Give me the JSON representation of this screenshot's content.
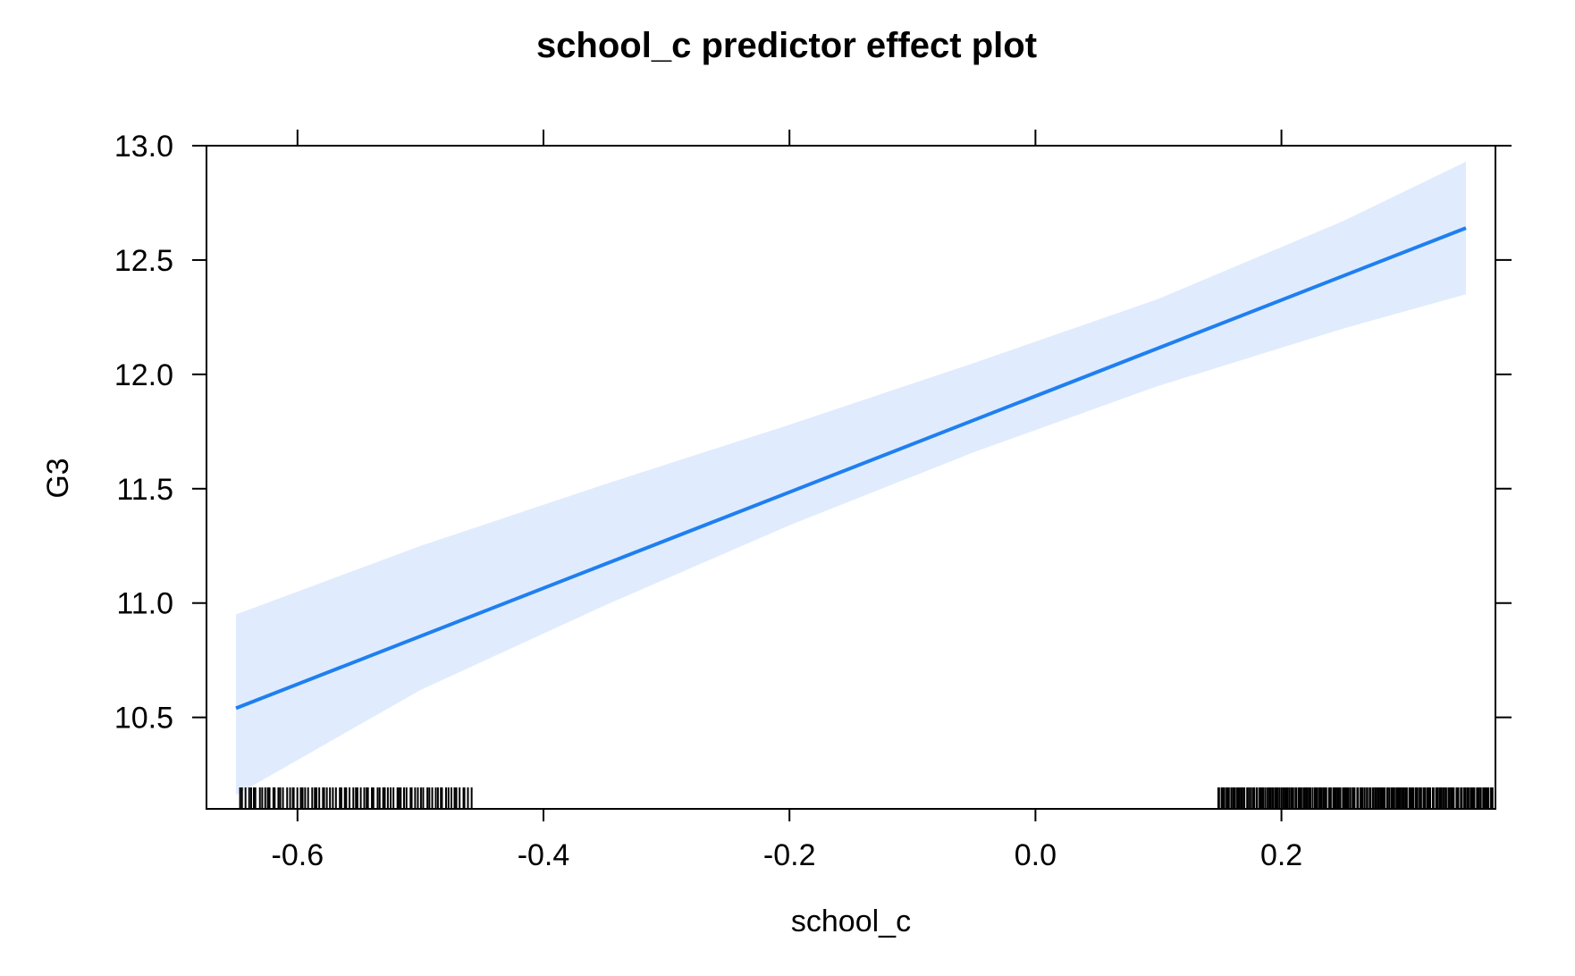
{
  "chart_data": {
    "type": "line",
    "title": "school_c predictor effect plot",
    "xlabel": "school_c",
    "ylabel": "G3",
    "xlim": [
      -0.674,
      0.374
    ],
    "ylim": [
      10.1,
      13.0
    ],
    "x_ticks": [
      -0.6,
      -0.4,
      -0.2,
      0.0,
      0.2
    ],
    "x_tick_labels": [
      "-0.6",
      "-0.4",
      "-0.2",
      "0.0",
      "0.2"
    ],
    "y_ticks": [
      10.5,
      11.0,
      11.5,
      12.0,
      12.5,
      13.0
    ],
    "y_tick_labels": [
      "10.5",
      "11.0",
      "11.5",
      "12.0",
      "12.5",
      "13.0"
    ],
    "grid": false,
    "legend": "none",
    "series": [
      {
        "x": [
          -0.65,
          0.35
        ],
        "y": [
          10.54,
          12.64
        ],
        "color": "#1f7ff0"
      }
    ],
    "confidence_band": {
      "x": [
        -0.65,
        -0.5,
        -0.35,
        -0.2,
        -0.05,
        0.1,
        0.25,
        0.35
      ],
      "lower": [
        10.16,
        10.62,
        10.99,
        11.34,
        11.66,
        11.95,
        12.2,
        12.35
      ],
      "upper": [
        10.95,
        11.25,
        11.52,
        11.78,
        12.05,
        12.33,
        12.67,
        12.93
      ],
      "color": "#e0ecfd"
    },
    "rug": {
      "clusters": [
        {
          "from": -0.648,
          "to": -0.458,
          "count": 85
        },
        {
          "from": 0.148,
          "to": 0.372,
          "count": 175
        }
      ]
    }
  }
}
